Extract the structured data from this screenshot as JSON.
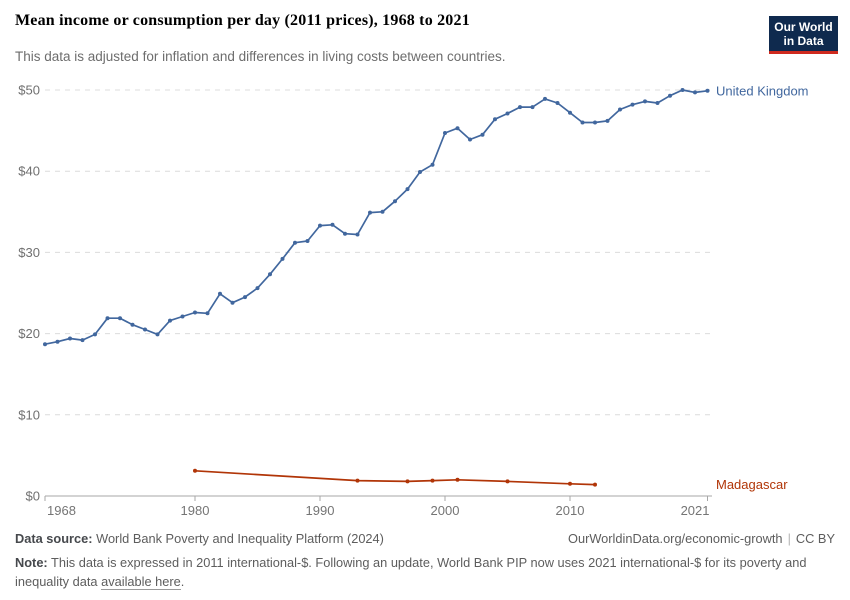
{
  "header": {
    "title": "Mean income or consumption per day (2011 prices), 1968 to 2021",
    "subtitle": "This data is adjusted for inflation and differences in living costs between countries.",
    "logo": {
      "line1": "Our World",
      "line2": "in Data",
      "bg_color": "#0f2a4e",
      "accent_color": "#cf2a1e"
    }
  },
  "chart_data": {
    "type": "line",
    "title": "Mean income or consumption per day (2011 prices), 1968 to 2021",
    "xlabel": "",
    "ylabel": "",
    "xlim": [
      1968,
      2021
    ],
    "ylim": [
      0,
      50
    ],
    "xticks": [
      1968,
      1980,
      1990,
      2000,
      2010,
      2021
    ],
    "yticks": [
      0,
      10,
      20,
      30,
      40,
      50
    ],
    "ytick_labels": [
      "$0",
      "$10",
      "$20",
      "$30",
      "$40",
      "$50"
    ],
    "grid": "horizontal-dashed",
    "legend_position": "line-end-labels-right",
    "series": [
      {
        "name": "United Kingdom",
        "color": "#41679e",
        "x": [
          1968,
          1969,
          1970,
          1971,
          1972,
          1973,
          1974,
          1975,
          1976,
          1977,
          1978,
          1979,
          1980,
          1981,
          1982,
          1983,
          1984,
          1985,
          1986,
          1987,
          1988,
          1989,
          1990,
          1991,
          1992,
          1993,
          1994,
          1995,
          1996,
          1997,
          1998,
          1999,
          2000,
          2001,
          2002,
          2003,
          2004,
          2005,
          2006,
          2007,
          2008,
          2009,
          2010,
          2011,
          2012,
          2013,
          2014,
          2015,
          2016,
          2017,
          2018,
          2019,
          2020,
          2021
        ],
        "values": [
          18.7,
          19.0,
          19.4,
          19.2,
          19.9,
          21.9,
          21.9,
          21.1,
          20.5,
          19.9,
          21.6,
          22.1,
          22.6,
          22.5,
          24.9,
          23.8,
          24.5,
          25.6,
          27.3,
          29.2,
          31.2,
          31.4,
          33.3,
          33.4,
          32.3,
          32.2,
          34.9,
          35.0,
          36.3,
          37.8,
          39.9,
          40.8,
          44.7,
          45.3,
          43.9,
          44.5,
          46.4,
          47.1,
          47.9,
          47.9,
          48.9,
          48.4,
          47.2,
          46.0,
          46.0,
          46.2,
          47.6,
          48.2,
          48.6,
          48.4,
          49.3,
          50.0,
          49.7,
          49.9
        ]
      },
      {
        "name": "Madagascar",
        "color": "#b13507",
        "x": [
          1980,
          1993,
          1997,
          1999,
          2001,
          2005,
          2010,
          2012
        ],
        "values": [
          3.1,
          1.9,
          1.8,
          1.9,
          2.0,
          1.8,
          1.5,
          1.4
        ]
      }
    ]
  },
  "footer": {
    "source_label": "Data source:",
    "source_text": "World Bank Poverty and Inequality Platform (2024)",
    "link_text": "OurWorldinData.org/economic-growth",
    "separator": "|",
    "license_text": "CC BY",
    "note_label": "Note:",
    "note_text": "This data is expressed in 2011 international-$. Following an update, World Bank PIP now uses 2021 international-$ for its poverty and inequality data",
    "note_link": "available here",
    "note_suffix": "."
  }
}
